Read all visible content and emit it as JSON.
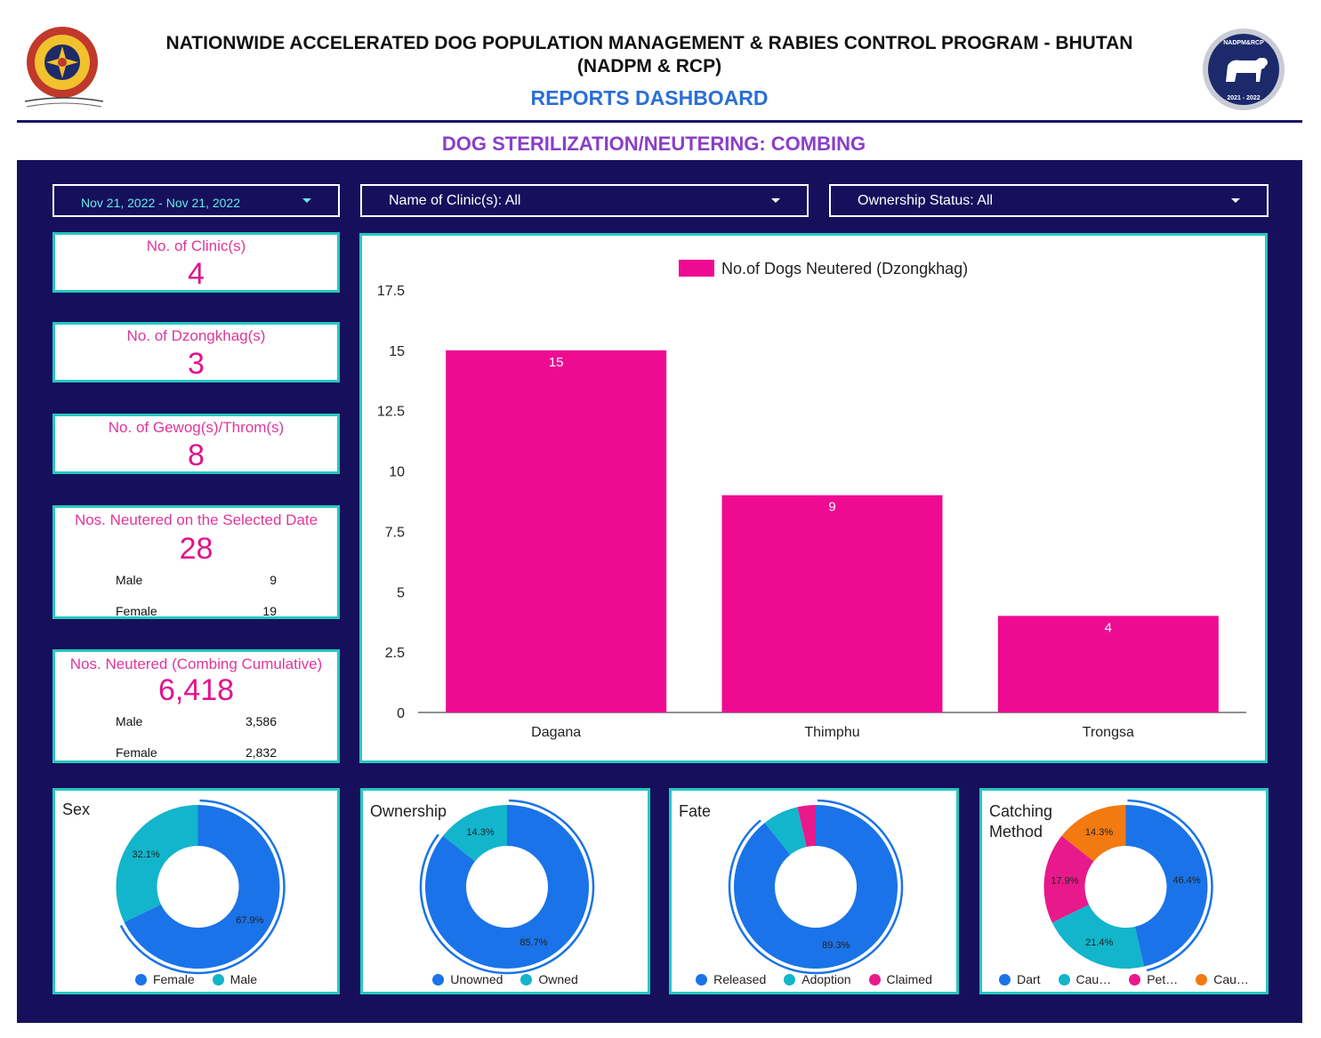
{
  "header": {
    "title_line1": "NATIONWIDE ACCELERATED DOG POPULATION MANAGEMENT & RABIES CONTROL PROGRAM - BHUTAN",
    "title_line2": "(NADPM & RCP)",
    "subtitle": "REPORTS DASHBOARD",
    "section_title": "DOG STERILIZATION/NEUTERING: COMBING",
    "right_logo_top": "NADPM&RCP",
    "right_logo_bottom": "2021 - 2022"
  },
  "filters": {
    "date_range": "Nov 21, 2022 - Nov 21, 2022",
    "clinic": "Name of Clinic(s): All",
    "ownership": "Ownership Status: All"
  },
  "kpis": {
    "clinics": {
      "label": "No. of Clinic(s)",
      "value": "4"
    },
    "dzongkhags": {
      "label": "No. of Dzongkhag(s)",
      "value": "3"
    },
    "gewogs": {
      "label": "No. of Gewog(s)/Throm(s)",
      "value": "8"
    },
    "selected_date": {
      "label": "Nos. Neutered on the Selected Date",
      "value": "28",
      "male_label": "Male",
      "male_value": "9",
      "female_label": "Female",
      "female_value": "19"
    },
    "cumulative": {
      "label": "Nos. Neutered (Combing Cumulative)",
      "value": "6,418",
      "male_label": "Male",
      "male_value": "3,586",
      "female_label": "Female",
      "female_value": "2,832"
    }
  },
  "colors": {
    "navy": "#160f5c",
    "teal_border": "#26c8c0",
    "bar_pink": "#ee0b92",
    "blue": "#1a73e8",
    "teal": "#12b5cb",
    "pink": "#e8198b",
    "orange": "#f27a10"
  },
  "chart_data": [
    {
      "type": "bar",
      "title": "",
      "legend": "No.of Dogs Neutered (Dzongkhag)",
      "legend_position": "top-center",
      "categories": [
        "Dagana",
        "Thimphu",
        "Trongsa"
      ],
      "series": [
        {
          "name": "No.of Dogs Neutered (Dzongkhag)",
          "values": [
            15,
            9,
            4
          ]
        }
      ],
      "ylim": [
        0,
        17.5
      ],
      "yticks": [
        "0",
        "2.5",
        "5",
        "7.5",
        "10",
        "12.5",
        "15",
        "17.5"
      ],
      "grid": false,
      "data_labels": true
    },
    {
      "type": "pie",
      "title": "Sex",
      "donut": true,
      "labels": [
        "Female",
        "Male"
      ],
      "values": [
        67.9,
        32.1
      ],
      "value_labels": [
        "67.9%",
        "32.1%"
      ],
      "colors": [
        "#1a73e8",
        "#12b5cb"
      ]
    },
    {
      "type": "pie",
      "title": "Ownership",
      "donut": true,
      "labels": [
        "Unowned",
        "Owned"
      ],
      "values": [
        85.7,
        14.3
      ],
      "value_labels": [
        "85.7%",
        "14.3%"
      ],
      "colors": [
        "#1a73e8",
        "#12b5cb"
      ]
    },
    {
      "type": "pie",
      "title": "Fate",
      "donut": true,
      "labels": [
        "Released",
        "Adoption",
        "Claimed"
      ],
      "values": [
        89.3,
        7.1,
        3.6
      ],
      "value_labels": [
        "89.3%",
        "",
        ""
      ],
      "colors": [
        "#1a73e8",
        "#12b5cb",
        "#e8198b"
      ]
    },
    {
      "type": "pie",
      "title": "Catching Method",
      "donut": true,
      "labels": [
        "Dart",
        "Cau…",
        "Pet…",
        "Cau…"
      ],
      "values": [
        46.4,
        21.4,
        17.9,
        14.3
      ],
      "value_labels": [
        "46.4%",
        "21.4%",
        "17.9%",
        "14.3%"
      ],
      "colors": [
        "#1a73e8",
        "#12b5cb",
        "#e8198b",
        "#f27a10"
      ]
    }
  ]
}
